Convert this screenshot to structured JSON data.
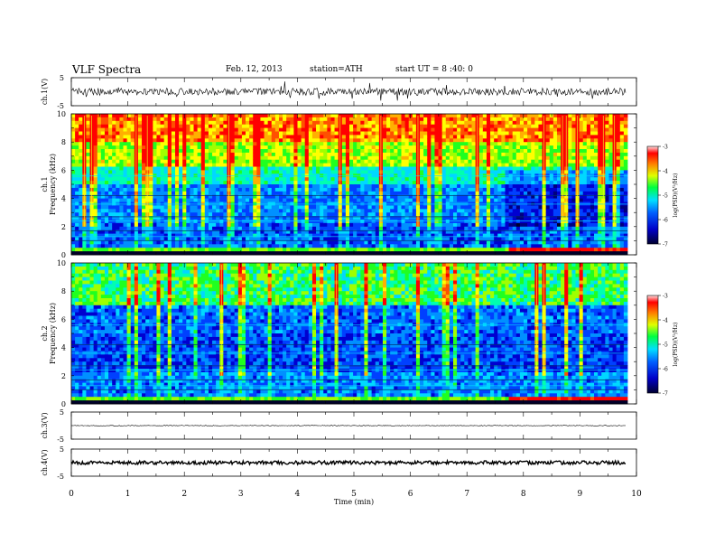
{
  "header": {
    "title": "VLF Spectra",
    "date": "Feb. 12, 2013",
    "station": "station=ATH",
    "start": "start UT =  8 :40: 0"
  },
  "chart_data": [
    {
      "type": "line",
      "panel": "ch1",
      "ylabel": "ch.1(V)",
      "ylim": [
        -5,
        5
      ],
      "yticks": [
        "5",
        "-5"
      ],
      "xlim": [
        0,
        10
      ],
      "description_values": "waveform oscillating around ~0 V between roughly -2 and +2 V"
    },
    {
      "type": "heatmap",
      "panel": "ch1-spectrogram",
      "ylabel": "ch.1\nFrequency  (kHz)",
      "ylim": [
        0,
        10
      ],
      "yticks": [
        "0",
        "2",
        "4",
        "6",
        "8",
        "10"
      ],
      "xlim": [
        0,
        10
      ],
      "colorbar": {
        "label": "log(PSD)(V²/Hz)",
        "range": [
          -7,
          -3
        ],
        "ticks": [
          "-3",
          "-4",
          "-5",
          "-6",
          "-7"
        ]
      }
    },
    {
      "type": "heatmap",
      "panel": "ch2-spectrogram",
      "ylabel": "ch.2\nFrequency  (kHz)",
      "ylim": [
        0,
        10
      ],
      "yticks": [
        "0",
        "2",
        "4",
        "6",
        "8",
        "10"
      ],
      "xlim": [
        0,
        10
      ],
      "colorbar": {
        "label": "log(PSD)(V²/Hz)",
        "range": [
          -7,
          -3
        ],
        "ticks": [
          "-3",
          "-4",
          "-5",
          "-6",
          "-7"
        ]
      }
    },
    {
      "type": "line",
      "panel": "ch3",
      "ylabel": "ch.3(V)",
      "ylim": [
        -5,
        5
      ],
      "yticks": [
        "5",
        "-5"
      ],
      "xlim": [
        0,
        10
      ]
    },
    {
      "type": "line",
      "panel": "ch4",
      "ylabel": "ch.4(V)",
      "ylim": [
        -5,
        5
      ],
      "yticks": [
        "5",
        "-5"
      ],
      "xlim": [
        0,
        10
      ],
      "xlabel": "Time  (min)",
      "xticks": [
        "0",
        "1",
        "2",
        "3",
        "4",
        "5",
        "6",
        "7",
        "8",
        "9",
        "10"
      ]
    }
  ],
  "colors": {
    "axis": "#000000",
    "cmap": [
      "#000040",
      "#0000ff",
      "#00a0ff",
      "#00ffff",
      "#00ff00",
      "#ffff00",
      "#ff8000",
      "#ff0000",
      "#ffffff"
    ]
  }
}
